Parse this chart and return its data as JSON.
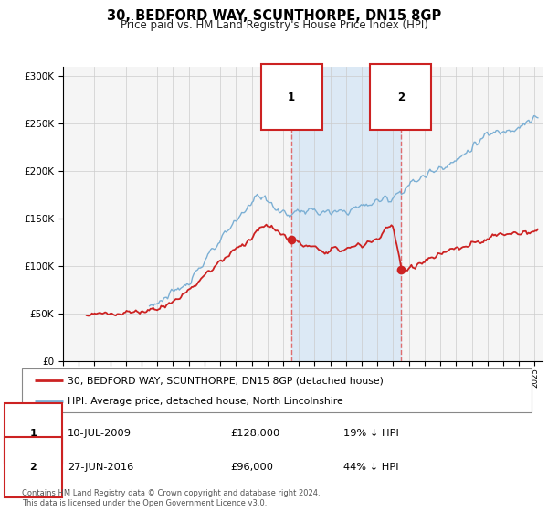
{
  "title": "30, BEDFORD WAY, SCUNTHORPE, DN15 8GP",
  "subtitle": "Price paid vs. HM Land Registry's House Price Index (HPI)",
  "sale1_date": 2009.53,
  "sale1_price": 128000,
  "sale1_label": "10-JUL-2009",
  "sale2_date": 2016.49,
  "sale2_price": 96000,
  "sale2_label": "27-JUN-2016",
  "legend_line1": "30, BEDFORD WAY, SCUNTHORPE, DN15 8GP (detached house)",
  "legend_line2": "HPI: Average price, detached house, North Lincolnshire",
  "footnote1": "Contains HM Land Registry data © Crown copyright and database right 2024.",
  "footnote2": "This data is licensed under the Open Government Licence v3.0.",
  "hpi_color": "#7bafd4",
  "price_color": "#cc2222",
  "shade_color": "#dce9f5",
  "vline_color": "#e06060",
  "bg_color": "#f5f5f5",
  "xmin": 1995,
  "xmax": 2025.5,
  "ymin": 0,
  "ymax": 310000,
  "hpi_start_year": 2000.5,
  "prop_start_year": 1996.5
}
